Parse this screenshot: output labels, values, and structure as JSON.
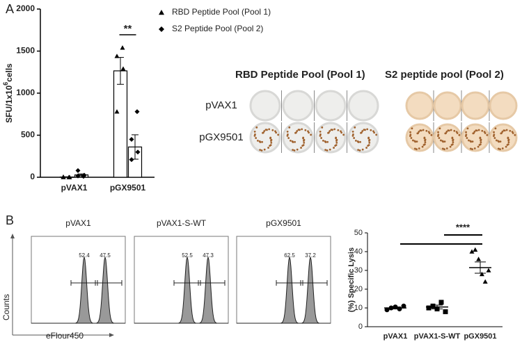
{
  "panel_letters": [
    "A",
    "B"
  ],
  "wells": {
    "headers": [
      "RBD Peptide Pool (Pool 1)",
      "S2 peptide pool (Pool 2)"
    ],
    "rows": [
      "pVAX1",
      "pGX9501"
    ]
  },
  "chart_data": [
    {
      "type": "bar",
      "categories": [
        "pVAX1",
        "pGX9501"
      ],
      "y_label": [
        "SFU/1x10",
        "6",
        "cells"
      ],
      "ylim": [
        0,
        2000
      ],
      "yticks": [
        0,
        500,
        1000,
        1500,
        2000
      ],
      "annotation": "**",
      "series": [
        {
          "name": "RBD Peptide Pool (Pool 1)",
          "marker": "triangle",
          "color": "#000000",
          "values": [
            3,
            1265
          ],
          "errors": [
            3,
            160
          ],
          "points": [
            [
              0,
              0,
              0,
              5
            ],
            [
              1540,
              1440,
              1290,
              780
            ]
          ]
        },
        {
          "name": "S2 Peptide Pool (Pool 2)",
          "marker": "diamond",
          "color": "#000000",
          "values": [
            28,
            360
          ],
          "errors": [
            12,
            145
          ],
          "points": [
            [
              10,
              15,
              25,
              80
            ],
            [
              780,
              450,
              300,
              210
            ]
          ]
        }
      ]
    },
    {
      "type": "flow",
      "x_label": "eFlour450",
      "y_label": "Counts",
      "panels": [
        {
          "title": "pVAX1",
          "gates": [
            52.4,
            47.5
          ]
        },
        {
          "title": "pVAX1-S-WT",
          "gates": [
            52.5,
            47.3
          ]
        },
        {
          "title": "pGX9501",
          "gates": [
            62.5,
            37.2
          ]
        }
      ]
    },
    {
      "type": "dotplot",
      "categories": [
        "pVAX1",
        "pVAX1-S-WT",
        "pGX9501"
      ],
      "y_label": "(%) Specific Lysis",
      "ylim": [
        0,
        50
      ],
      "yticks": [
        0,
        10,
        20,
        30,
        40,
        50
      ],
      "annotation": "****",
      "markers": [
        "circle",
        "square",
        "triangle"
      ],
      "points": [
        [
          9,
          10,
          10.5,
          9.5,
          11
        ],
        [
          10,
          11,
          9.5,
          13,
          8
        ],
        [
          40,
          41,
          36,
          28,
          24,
          30
        ]
      ],
      "means": [
        10,
        10.5,
        31.5
      ],
      "errors": [
        0.5,
        1,
        3
      ]
    }
  ]
}
